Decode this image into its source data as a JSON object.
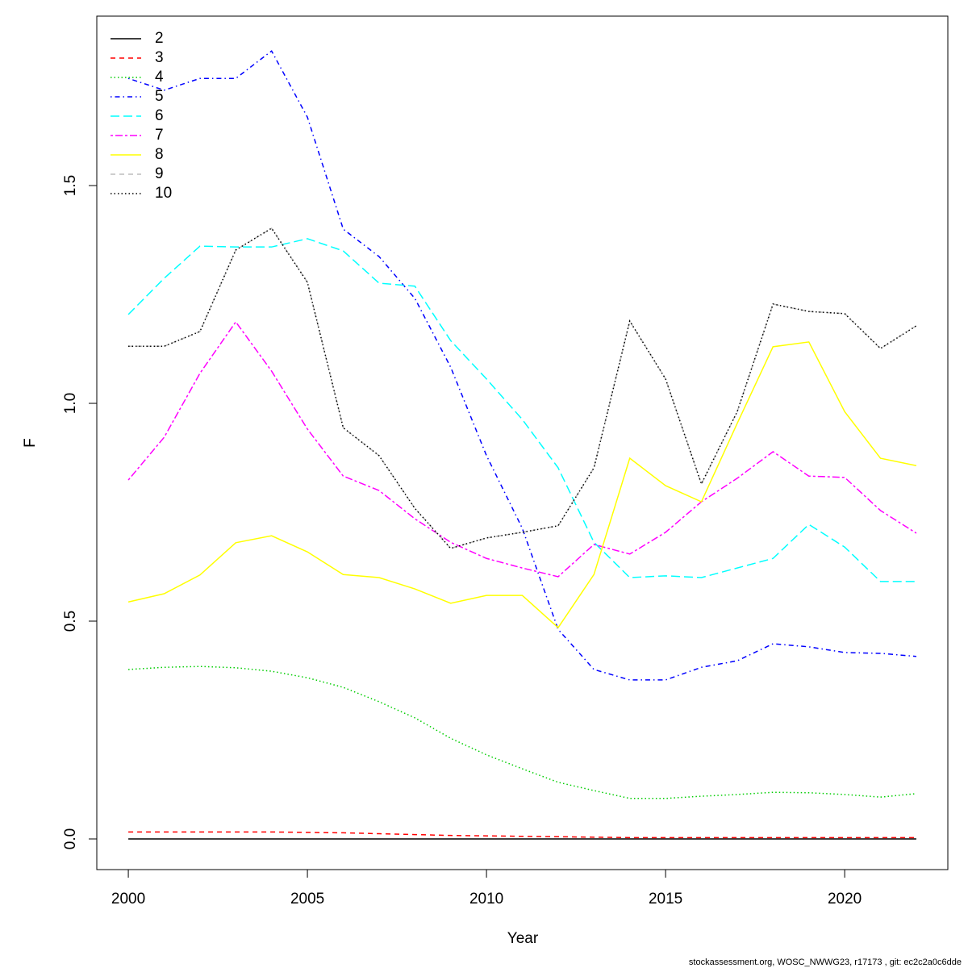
{
  "chart_data": {
    "type": "line",
    "xlabel": "Year",
    "ylabel": "F",
    "footer": "stockassessment.org, WOSC_NWWG23, r17173 , git: ec2c2a0c6dde",
    "x": [
      2000,
      2001,
      2002,
      2003,
      2004,
      2005,
      2006,
      2007,
      2008,
      2009,
      2010,
      2011,
      2012,
      2013,
      2014,
      2015,
      2016,
      2017,
      2018,
      2019,
      2020,
      2021,
      2022
    ],
    "xlim": [
      1999.12,
      2022.88
    ],
    "xticks": [
      2000,
      2005,
      2010,
      2015,
      2020
    ],
    "ylim": [
      -0.0704,
      1.889
    ],
    "yticks": [
      {
        "value": 0,
        "label": "0.0"
      },
      {
        "value": 0.5,
        "label": "0.5"
      },
      {
        "value": 1,
        "label": "1.0"
      },
      {
        "value": 1.5,
        "label": "1.5"
      }
    ],
    "legend": "top-left",
    "series": [
      {
        "name": "2",
        "color": "#000000",
        "dash": "none",
        "values": [
          0,
          0,
          0,
          0,
          0,
          0,
          0,
          0,
          0,
          0,
          0,
          0,
          0,
          0,
          0,
          0,
          0,
          0,
          0,
          0,
          0,
          0,
          0
        ]
      },
      {
        "name": "3",
        "color": "#ff0000",
        "dash": "6 5",
        "values": [
          0.016,
          0.016,
          0.016,
          0.016,
          0.016,
          0.015,
          0.014,
          0.012,
          0.01,
          0.008,
          0.007,
          0.006,
          0.005,
          0.004,
          0.003,
          0.003,
          0.003,
          0.003,
          0.003,
          0.003,
          0.003,
          0.003,
          0.003
        ]
      },
      {
        "name": "4",
        "color": "#00cd00",
        "dash": "1.5 3",
        "values": [
          0.389,
          0.394,
          0.396,
          0.393,
          0.385,
          0.37,
          0.348,
          0.315,
          0.278,
          0.231,
          0.193,
          0.161,
          0.13,
          0.111,
          0.093,
          0.093,
          0.098,
          0.102,
          0.107,
          0.106,
          0.102,
          0.096,
          0.104
        ]
      },
      {
        "name": "5",
        "color": "#0000ff",
        "dash": "1.5 4 6 4",
        "values": [
          1.746,
          1.719,
          1.746,
          1.746,
          1.809,
          1.657,
          1.4,
          1.337,
          1.241,
          1.083,
          0.88,
          0.713,
          0.481,
          0.389,
          0.365,
          0.365,
          0.394,
          0.409,
          0.448,
          0.441,
          0.428,
          0.426,
          0.419
        ]
      },
      {
        "name": "6",
        "color": "#00ffff",
        "dash": "11 5",
        "values": [
          1.204,
          1.287,
          1.361,
          1.359,
          1.359,
          1.378,
          1.35,
          1.276,
          1.269,
          1.144,
          1.056,
          0.963,
          0.852,
          0.681,
          0.6,
          0.604,
          0.6,
          0.622,
          0.644,
          0.722,
          0.67,
          0.591,
          0.591
        ]
      },
      {
        "name": "7",
        "color": "#ff00ff",
        "dash": "3 3 9 3",
        "values": [
          0.824,
          0.922,
          1.069,
          1.187,
          1.074,
          0.941,
          0.833,
          0.8,
          0.735,
          0.681,
          0.644,
          0.622,
          0.602,
          0.676,
          0.654,
          0.704,
          0.774,
          0.828,
          0.889,
          0.833,
          0.83,
          0.754,
          0.702
        ]
      },
      {
        "name": "8",
        "color": "#ffff00",
        "dash": "none",
        "values": [
          0.544,
          0.563,
          0.606,
          0.68,
          0.696,
          0.659,
          0.607,
          0.6,
          0.574,
          0.541,
          0.559,
          0.559,
          0.485,
          0.607,
          0.874,
          0.811,
          0.774,
          0.954,
          1.13,
          1.141,
          0.981,
          0.874,
          0.857
        ]
      },
      {
        "name": "9",
        "color": "#bebebe",
        "dash": "6 5",
        "values": [
          1.131,
          1.131,
          1.165,
          1.352,
          1.402,
          1.278,
          0.944,
          0.88,
          0.759,
          0.667,
          0.691,
          0.704,
          0.719,
          0.852,
          1.189,
          1.056,
          0.815,
          0.981,
          1.228,
          1.211,
          1.206,
          1.126,
          1.178
        ]
      },
      {
        "name": "10",
        "color": "#000000",
        "dash": "1.5 3",
        "values": [
          1.131,
          1.131,
          1.165,
          1.352,
          1.402,
          1.278,
          0.944,
          0.88,
          0.759,
          0.667,
          0.691,
          0.704,
          0.719,
          0.852,
          1.189,
          1.056,
          0.815,
          0.981,
          1.228,
          1.211,
          1.206,
          1.126,
          1.178
        ]
      }
    ]
  }
}
